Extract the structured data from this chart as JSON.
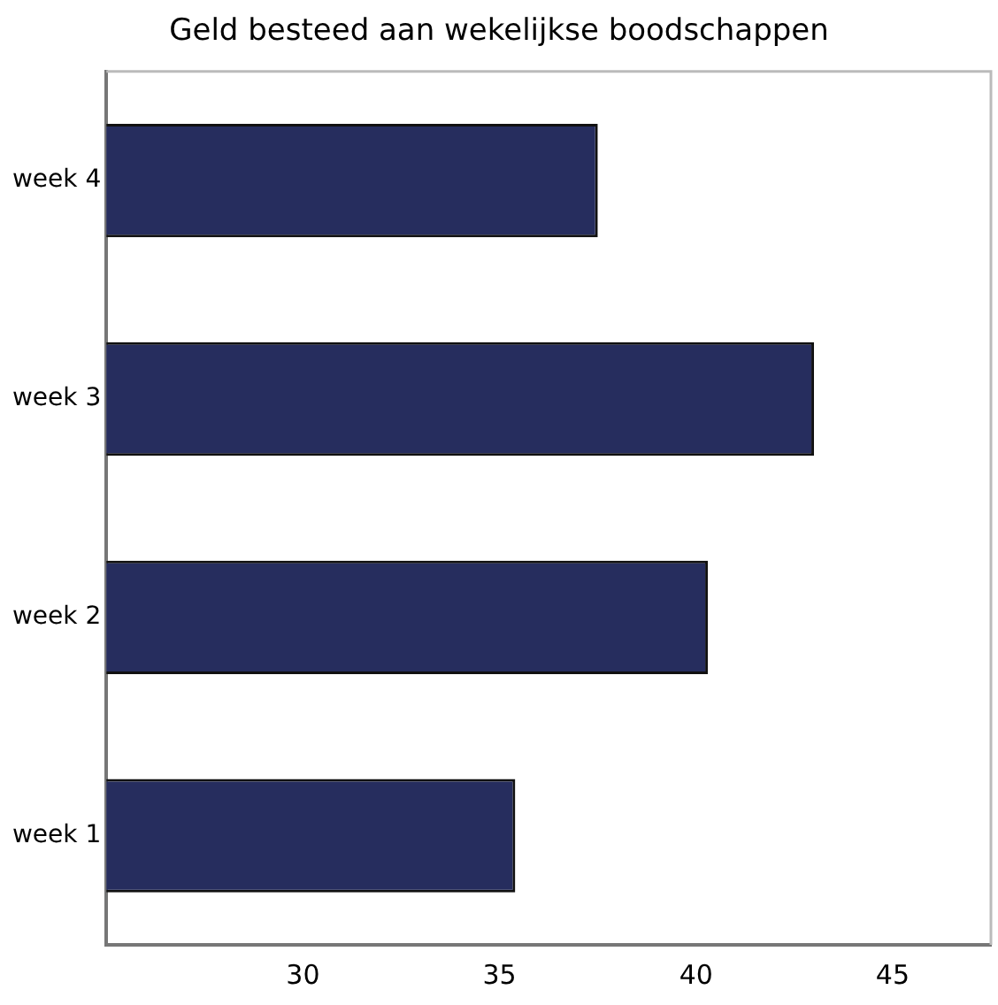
{
  "chart_data": {
    "type": "bar",
    "orientation": "horizontal",
    "title": "Geld besteed aan wekelijkse boodschappen",
    "categories": [
      "week 4",
      "week 3",
      "week 2",
      "week 1"
    ],
    "values": [
      37.5,
      43,
      40.3,
      35.4
    ],
    "color": "#262d5e",
    "xlim": [
      25,
      47.5
    ],
    "xticks": [
      30,
      35,
      40,
      45
    ],
    "grid": false,
    "legend": false
  }
}
